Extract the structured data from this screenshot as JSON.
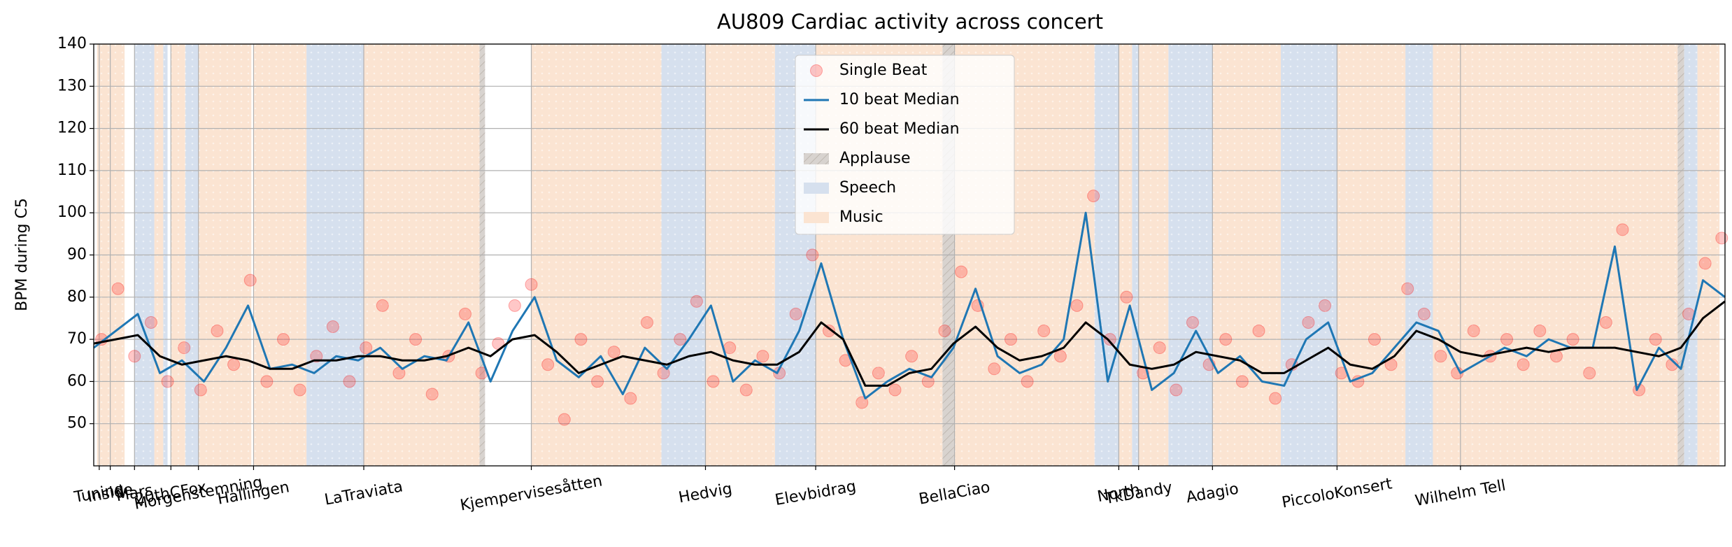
{
  "chart_data": {
    "type": "line",
    "title": "AU809 Cardiac activity across concert",
    "ylabel": "BPM during C5",
    "xlim": [
      0,
      1480
    ],
    "ylim": [
      40,
      140
    ],
    "yticks": [
      50,
      60,
      70,
      80,
      90,
      100,
      110,
      120,
      130,
      140
    ],
    "xticks": [
      {
        "value": 5,
        "label": "Tuning"
      },
      {
        "value": 15,
        "label": "Inside"
      },
      {
        "value": 37,
        "label": "Mars"
      },
      {
        "value": 70,
        "label": "20thCFox"
      },
      {
        "value": 95,
        "label": "Morgenstemning"
      },
      {
        "value": 145,
        "label": "Hallingen"
      },
      {
        "value": 245,
        "label": "LaTraviata"
      },
      {
        "value": 397,
        "label": "Kjempervisesåtten"
      },
      {
        "value": 555,
        "label": "Hedvig"
      },
      {
        "value": 655,
        "label": "Elevbidrag"
      },
      {
        "value": 781,
        "label": "BellaCiao"
      },
      {
        "value": 930,
        "label": "North"
      },
      {
        "value": 948,
        "label": "TkDandy"
      },
      {
        "value": 1015,
        "label": "Adagio"
      },
      {
        "value": 1128,
        "label": "PiccoloKonsert"
      },
      {
        "value": 1240,
        "label": "Wilhelm Tell"
      }
    ],
    "grid": true,
    "spans": [
      {
        "name": "Applause",
        "color": "#d8d3cf",
        "ranges": [
          [
            350,
            355
          ],
          [
            770,
            781
          ],
          [
            1437,
            1443
          ]
        ]
      },
      {
        "name": "Speech",
        "color": "#d6e0ee",
        "ranges": [
          [
            37,
            55
          ],
          [
            63,
            67
          ],
          [
            83,
            95
          ],
          [
            193,
            245
          ],
          [
            515,
            555
          ],
          [
            618,
            655
          ],
          [
            908,
            930
          ],
          [
            942,
            948
          ],
          [
            975,
            1015
          ],
          [
            1077,
            1128
          ],
          [
            1190,
            1215
          ],
          [
            1443,
            1455
          ]
        ]
      },
      {
        "name": "Music",
        "color": "#fbe4d2",
        "ranges": [
          [
            3,
            28
          ],
          [
            55,
            63
          ],
          [
            70,
            83
          ],
          [
            95,
            143
          ],
          [
            145,
            193
          ],
          [
            245,
            350
          ],
          [
            397,
            515
          ],
          [
            555,
            618
          ],
          [
            655,
            770
          ],
          [
            781,
            908
          ],
          [
            930,
            942
          ],
          [
            948,
            975
          ],
          [
            1015,
            1077
          ],
          [
            1128,
            1190
          ],
          [
            1215,
            1250
          ],
          [
            1250,
            1437
          ],
          [
            1455,
            1475
          ]
        ]
      }
    ],
    "series": [
      {
        "name": "Single Beat",
        "kind": "scatter",
        "color": "#ff0000",
        "x": [
          7,
          22,
          37,
          52,
          67,
          82,
          97,
          112,
          127,
          142,
          157,
          172,
          187,
          202,
          217,
          232,
          247,
          262,
          277,
          292,
          307,
          322,
          337,
          352,
          367,
          382,
          397,
          412,
          427,
          442,
          457,
          472,
          487,
          502,
          517,
          532,
          547,
          562,
          577,
          592,
          607,
          622,
          637,
          652,
          667,
          682,
          697,
          712,
          727,
          742,
          757,
          772,
          787,
          802,
          817,
          832,
          847,
          862,
          877,
          892,
          907,
          922,
          937,
          952,
          967,
          982,
          997,
          1012,
          1027,
          1042,
          1057,
          1072,
          1087,
          1102,
          1117,
          1132,
          1147,
          1162,
          1177,
          1192,
          1207,
          1222,
          1237,
          1252,
          1267,
          1282,
          1297,
          1312,
          1327,
          1342,
          1357,
          1372,
          1387,
          1402,
          1417,
          1432,
          1447,
          1462,
          1477
        ],
        "values": [
          70,
          82,
          66,
          74,
          60,
          68,
          58,
          72,
          64,
          84,
          60,
          70,
          58,
          66,
          73,
          60,
          68,
          78,
          62,
          70,
          57,
          66,
          76,
          62,
          69,
          78,
          83,
          64,
          51,
          70,
          60,
          67,
          56,
          74,
          62,
          70,
          79,
          60,
          68,
          58,
          66,
          62,
          76,
          90,
          72,
          65,
          55,
          62,
          58,
          66,
          60,
          72,
          86,
          78,
          63,
          70,
          60,
          72,
          66,
          78,
          104,
          70,
          80,
          62,
          68,
          58,
          74,
          64,
          70,
          60,
          72,
          56,
          64,
          74,
          78,
          62,
          60,
          70,
          64,
          82,
          76,
          66,
          62,
          72,
          66,
          70,
          64,
          72,
          66,
          70,
          62,
          74,
          96,
          58,
          70,
          64,
          76,
          88,
          94
        ]
      },
      {
        "name": "10 beat Median",
        "kind": "line",
        "color": "#1f77b4",
        "x": [
          0,
          20,
          40,
          60,
          80,
          100,
          120,
          140,
          160,
          180,
          200,
          220,
          240,
          260,
          280,
          300,
          320,
          340,
          360,
          380,
          400,
          420,
          440,
          460,
          480,
          500,
          520,
          540,
          560,
          580,
          600,
          620,
          640,
          660,
          680,
          700,
          720,
          740,
          760,
          780,
          800,
          820,
          840,
          860,
          880,
          900,
          920,
          940,
          960,
          980,
          1000,
          1020,
          1040,
          1060,
          1080,
          1100,
          1120,
          1140,
          1160,
          1180,
          1200,
          1220,
          1240,
          1260,
          1280,
          1300,
          1320,
          1340,
          1360,
          1380,
          1400,
          1420,
          1440,
          1460,
          1480
        ],
        "values": [
          68,
          72,
          76,
          62,
          65,
          60,
          68,
          78,
          63,
          64,
          62,
          66,
          65,
          68,
          63,
          66,
          65,
          74,
          60,
          72,
          80,
          65,
          61,
          66,
          57,
          68,
          63,
          70,
          78,
          60,
          65,
          62,
          72,
          88,
          70,
          56,
          60,
          63,
          61,
          68,
          82,
          66,
          62,
          64,
          70,
          100,
          60,
          78,
          58,
          62,
          72,
          62,
          66,
          60,
          59,
          70,
          74,
          60,
          62,
          68,
          74,
          72,
          62,
          65,
          68,
          66,
          70,
          68,
          68,
          92,
          58,
          68,
          63,
          84,
          80
        ]
      },
      {
        "name": "60 beat Median",
        "kind": "line",
        "color": "#000000",
        "x": [
          0,
          20,
          40,
          60,
          80,
          100,
          120,
          140,
          160,
          180,
          200,
          220,
          240,
          260,
          280,
          300,
          320,
          340,
          360,
          380,
          400,
          420,
          440,
          460,
          480,
          500,
          520,
          540,
          560,
          580,
          600,
          620,
          640,
          660,
          680,
          700,
          720,
          740,
          760,
          780,
          800,
          820,
          840,
          860,
          880,
          900,
          920,
          940,
          960,
          980,
          1000,
          1020,
          1040,
          1060,
          1080,
          1100,
          1120,
          1140,
          1160,
          1180,
          1200,
          1220,
          1240,
          1260,
          1280,
          1300,
          1320,
          1340,
          1360,
          1380,
          1400,
          1420,
          1440,
          1460,
          1480
        ],
        "values": [
          69,
          70,
          71,
          66,
          64,
          65,
          66,
          65,
          63,
          63,
          65,
          65,
          66,
          66,
          65,
          65,
          66,
          68,
          66,
          70,
          71,
          67,
          62,
          64,
          66,
          65,
          64,
          66,
          67,
          65,
          64,
          64,
          67,
          74,
          70,
          59,
          59,
          62,
          63,
          69,
          73,
          68,
          65,
          66,
          68,
          74,
          70,
          64,
          63,
          64,
          67,
          66,
          65,
          62,
          62,
          65,
          68,
          64,
          63,
          66,
          72,
          70,
          67,
          66,
          67,
          68,
          67,
          68,
          68,
          68,
          67,
          66,
          68,
          75,
          79
        ]
      }
    ]
  }
}
